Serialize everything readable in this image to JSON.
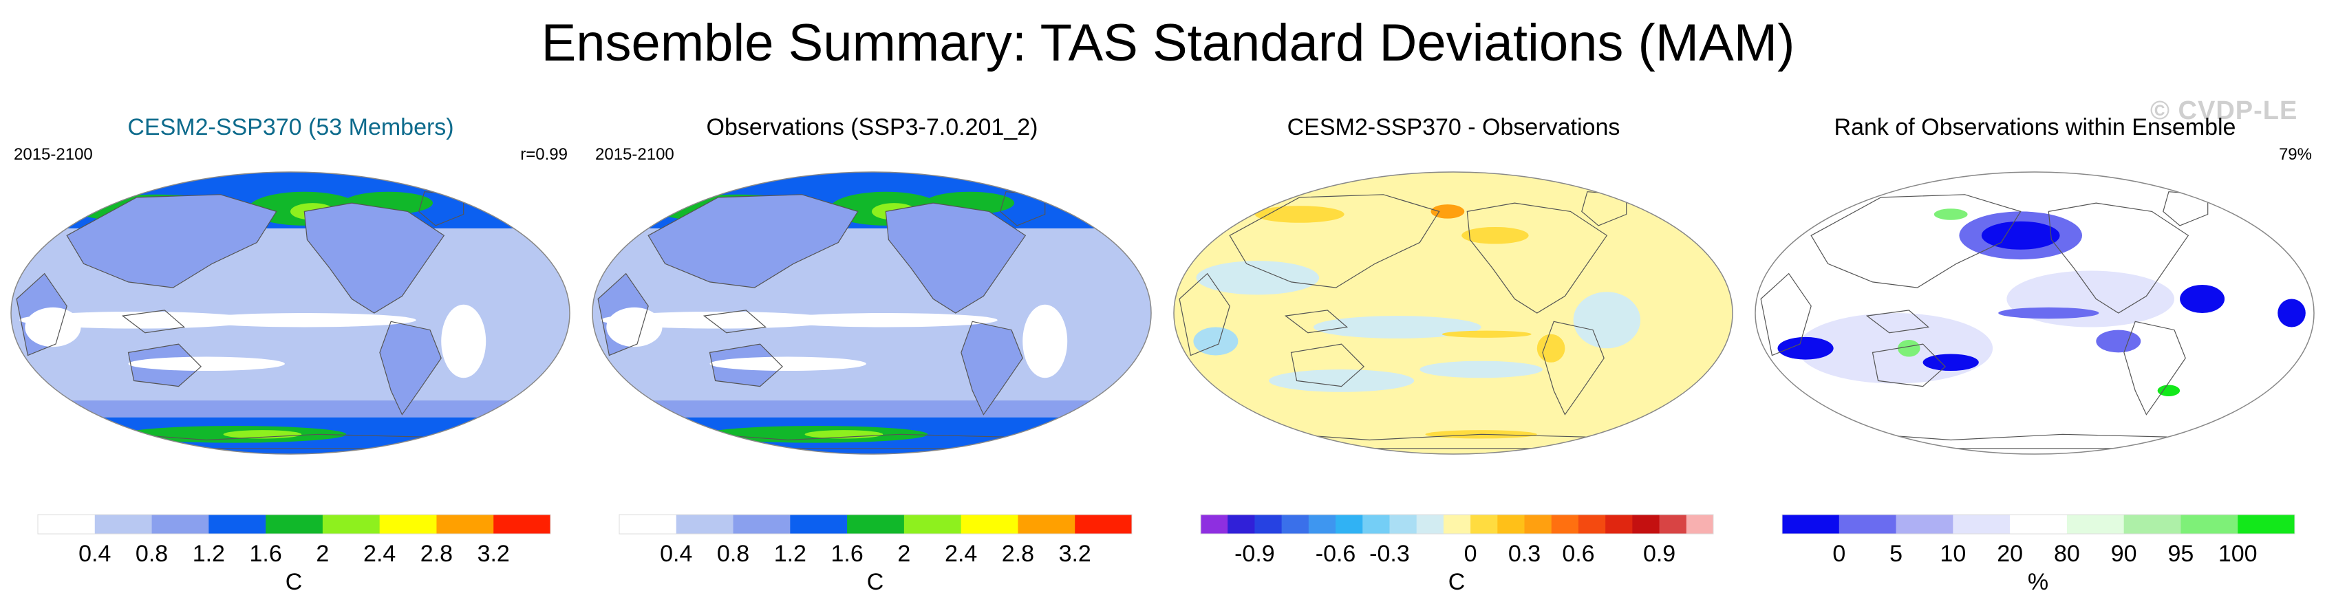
{
  "title": "Ensemble Summary: TAS Standard Deviations (MAM)",
  "watermark": "© CVDP-LE",
  "panels": [
    {
      "title": "CESM2-SSP370 (53 Members)",
      "title_color": "#0e6b8c",
      "period": "2015-2100",
      "stat": "r=0.99",
      "map_style": "sd",
      "colorbar": {
        "unit": "C",
        "colors": [
          "#ffffff",
          "#b8c8f2",
          "#8aa0ee",
          "#0c60f0",
          "#11b82a",
          "#8ef01e",
          "#ffff00",
          "#ffa000",
          "#ff2000"
        ],
        "labels": [
          "0.4",
          "0.8",
          "1.2",
          "1.6",
          "2",
          "2.4",
          "2.8",
          "3.2"
        ]
      }
    },
    {
      "title": "Observations (SSP3-7.0.201_2)",
      "title_color": "#000000",
      "period": "2015-2100",
      "stat": "",
      "map_style": "sd",
      "colorbar": {
        "unit": "C",
        "colors": [
          "#ffffff",
          "#b8c8f2",
          "#8aa0ee",
          "#0c60f0",
          "#11b82a",
          "#8ef01e",
          "#ffff00",
          "#ffa000",
          "#ff2000"
        ],
        "labels": [
          "0.4",
          "0.8",
          "1.2",
          "1.6",
          "2",
          "2.4",
          "2.8",
          "3.2"
        ]
      }
    },
    {
      "title": "CESM2-SSP370 - Observations",
      "title_color": "#000000",
      "period": "",
      "stat": "",
      "map_style": "diff",
      "colorbar": {
        "unit": "C",
        "colors": [
          "#8e2fe0",
          "#3020d8",
          "#2642e2",
          "#3a70ea",
          "#3e96f0",
          "#30b2f4",
          "#74cef6",
          "#aadef4",
          "#d2ecf2",
          "#fff6a8",
          "#ffdc40",
          "#ffc018",
          "#ffa010",
          "#ff7010",
          "#f44a10",
          "#e02610",
          "#c41010",
          "#d84444",
          "#f8b0b0"
        ],
        "labels": [
          "-0.9",
          "-0.6",
          "-0.3",
          "0",
          "0.3",
          "0.6",
          "0.9"
        ]
      }
    },
    {
      "title": "Rank of Observations within Ensemble",
      "title_color": "#000000",
      "period": "",
      "stat": "79%",
      "map_style": "rank",
      "colorbar": {
        "unit": "%",
        "colors": [
          "#0a0af0",
          "#6a6cf0",
          "#aeb0f4",
          "#e2e4fc",
          "#ffffff",
          "#e2fce0",
          "#aef0a8",
          "#7ef078",
          "#12e81a"
        ],
        "labels": [
          "0",
          "5",
          "10",
          "20",
          "80",
          "90",
          "95",
          "100"
        ]
      }
    }
  ]
}
